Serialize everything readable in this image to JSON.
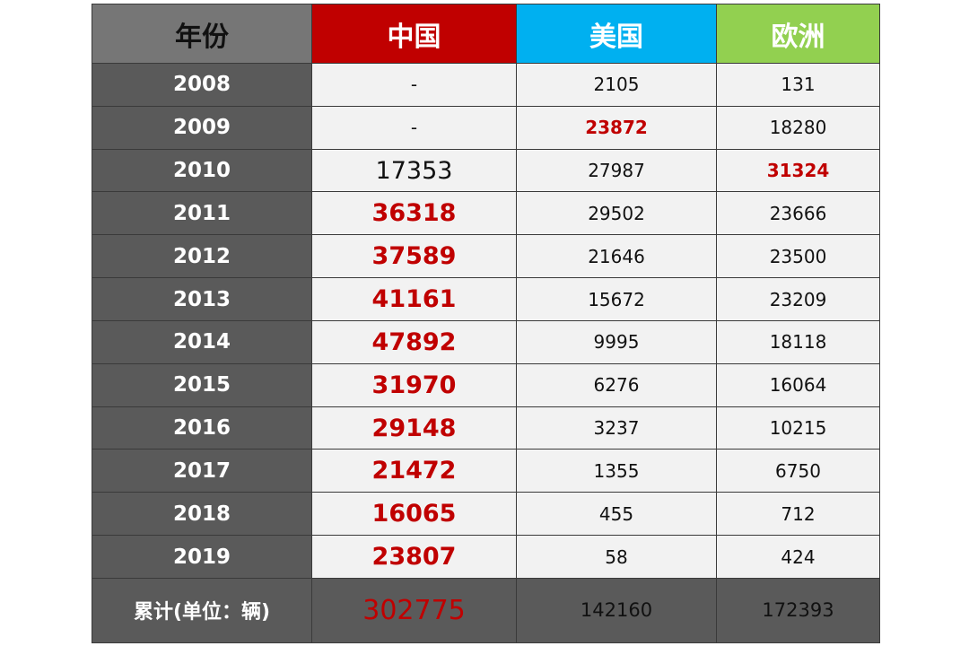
{
  "table": {
    "headers": {
      "year": "年份",
      "china": "中国",
      "usa": "美国",
      "europe": "欧洲"
    },
    "rows": [
      {
        "year": "2008",
        "china": "-",
        "usa": "2105",
        "europe": "131"
      },
      {
        "year": "2009",
        "china": "-",
        "usa": "23872",
        "europe": "18280"
      },
      {
        "year": "2010",
        "china": "17353",
        "usa": "27987",
        "europe": "31324"
      },
      {
        "year": "2011",
        "china": "36318",
        "usa": "29502",
        "europe": "23666"
      },
      {
        "year": "2012",
        "china": "37589",
        "usa": "21646",
        "europe": "23500"
      },
      {
        "year": "2013",
        "china": "41161",
        "usa": "15672",
        "europe": "23209"
      },
      {
        "year": "2014",
        "china": "47892",
        "usa": "9995",
        "europe": "18118"
      },
      {
        "year": "2015",
        "china": "31970",
        "usa": "6276",
        "europe": "16064"
      },
      {
        "year": "2016",
        "china": "29148",
        "usa": "3237",
        "europe": "10215"
      },
      {
        "year": "2017",
        "china": "21472",
        "usa": "1355",
        "europe": "6750"
      },
      {
        "year": "2018",
        "china": "16065",
        "usa": "455",
        "europe": "712"
      },
      {
        "year": "2019",
        "china": "23807",
        "usa": "58",
        "europe": "424"
      }
    ],
    "total": {
      "label": "累计(单位：辆)",
      "china": "302775",
      "usa": "142160",
      "europe": "172393"
    }
  },
  "colors": {
    "header_year": "#767676",
    "header_china": "#c00000",
    "header_usa": "#00b0f0",
    "header_europe": "#92d050",
    "year_column": "#5a5a5a",
    "cell_bg": "#f2f2f2",
    "highlight_red": "#c00000"
  }
}
